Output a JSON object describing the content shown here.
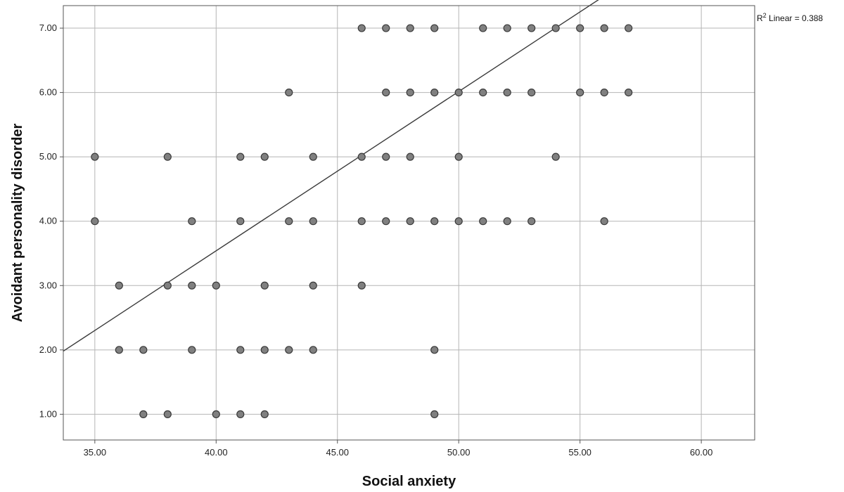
{
  "chart_data": {
    "type": "scatter",
    "xlabel": "Social anxiety",
    "ylabel": "Avoidant personality disorder",
    "xlim": [
      33.7,
      62.2
    ],
    "ylim": [
      0.6,
      7.35
    ],
    "xticks": [
      35,
      40,
      45,
      50,
      55,
      60
    ],
    "xtick_labels": [
      "35.00",
      "40.00",
      "45.00",
      "50.00",
      "55.00",
      "60.00"
    ],
    "yticks": [
      1,
      2,
      3,
      4,
      5,
      6,
      7
    ],
    "ytick_labels": [
      "1.00",
      "2.00",
      "3.00",
      "4.00",
      "5.00",
      "6.00",
      "7.00"
    ],
    "grid": true,
    "annotation": {
      "prefix": "R",
      "superscript": "2",
      "text": " Linear = 0.388"
    },
    "fit_line": {
      "slope": 0.2475,
      "intercept": -6.36,
      "x_range": [
        33.7,
        59.8
      ]
    },
    "colors": {
      "point_fill": "#808080",
      "point_stroke": "#3a3a3a",
      "grid": "#b5b5b5",
      "line": "#3a3a3a"
    },
    "points": [
      [
        46,
        7
      ],
      [
        47,
        7
      ],
      [
        48,
        7
      ],
      [
        49,
        7
      ],
      [
        51,
        7
      ],
      [
        52,
        7
      ],
      [
        53,
        7
      ],
      [
        54,
        7
      ],
      [
        55,
        7
      ],
      [
        56,
        7
      ],
      [
        57,
        7
      ],
      [
        43,
        6
      ],
      [
        47,
        6
      ],
      [
        48,
        6
      ],
      [
        49,
        6
      ],
      [
        50,
        6
      ],
      [
        51,
        6
      ],
      [
        52,
        6
      ],
      [
        53,
        6
      ],
      [
        55,
        6
      ],
      [
        56,
        6
      ],
      [
        57,
        6
      ],
      [
        35,
        5
      ],
      [
        38,
        5
      ],
      [
        41,
        5
      ],
      [
        42,
        5
      ],
      [
        44,
        5
      ],
      [
        46,
        5
      ],
      [
        47,
        5
      ],
      [
        48,
        5
      ],
      [
        50,
        5
      ],
      [
        54,
        5
      ],
      [
        35,
        4
      ],
      [
        39,
        4
      ],
      [
        41,
        4
      ],
      [
        43,
        4
      ],
      [
        44,
        4
      ],
      [
        46,
        4
      ],
      [
        47,
        4
      ],
      [
        48,
        4
      ],
      [
        49,
        4
      ],
      [
        50,
        4
      ],
      [
        51,
        4
      ],
      [
        52,
        4
      ],
      [
        53,
        4
      ],
      [
        56,
        4
      ],
      [
        36,
        3
      ],
      [
        38,
        3
      ],
      [
        39,
        3
      ],
      [
        40,
        3
      ],
      [
        42,
        3
      ],
      [
        44,
        3
      ],
      [
        46,
        3
      ],
      [
        36,
        2
      ],
      [
        37,
        2
      ],
      [
        39,
        2
      ],
      [
        41,
        2
      ],
      [
        42,
        2
      ],
      [
        43,
        2
      ],
      [
        44,
        2
      ],
      [
        49,
        2
      ],
      [
        37,
        1
      ],
      [
        38,
        1
      ],
      [
        40,
        1
      ],
      [
        41,
        1
      ],
      [
        42,
        1
      ],
      [
        49,
        1
      ]
    ]
  }
}
